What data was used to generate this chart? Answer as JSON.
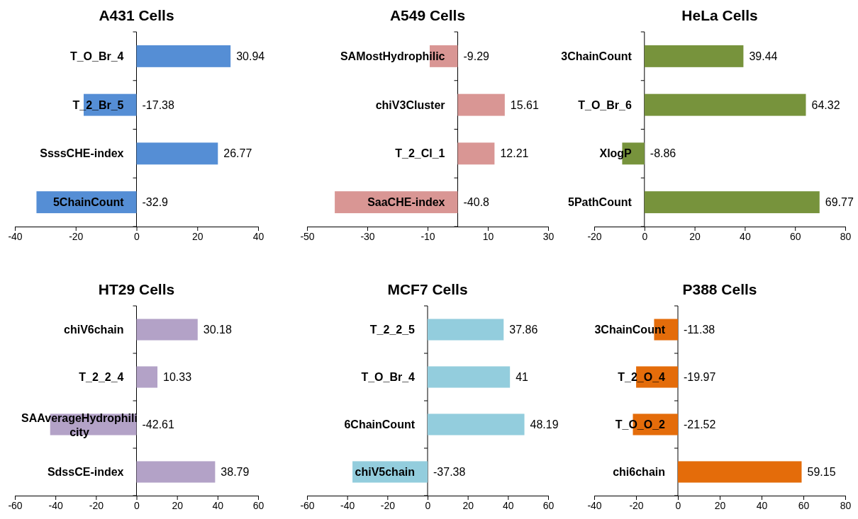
{
  "chart_data": [
    {
      "type": "bar",
      "orientation": "horizontal",
      "title": "A431 Cells",
      "categories": [
        "T_O_Br_4",
        "T_2_Br_5",
        "SsssCHE-index",
        "5ChainCount"
      ],
      "values": [
        30.94,
        -17.38,
        26.77,
        -32.9
      ],
      "color": "#558ed5",
      "xlim": [
        -40,
        40
      ],
      "xticks": [
        -40,
        -20,
        0,
        20,
        40
      ],
      "data_labels": true
    },
    {
      "type": "bar",
      "orientation": "horizontal",
      "title": "A549 Cells",
      "categories": [
        "SAMostHydrophilic",
        "chiV3Cluster",
        "T_2_Cl_1",
        "SaaCHE-index"
      ],
      "values": [
        -9.29,
        15.61,
        12.21,
        -40.8
      ],
      "color": "#d99694",
      "xlim": [
        -50,
        30
      ],
      "xticks": [
        -50,
        -30,
        -10,
        10,
        30
      ],
      "data_labels": true
    },
    {
      "type": "bar",
      "orientation": "horizontal",
      "title": "HeLa Cells",
      "categories": [
        "3ChainCount",
        "T_O_Br_6",
        "XlogP",
        "5PathCount"
      ],
      "values": [
        39.44,
        64.32,
        -8.86,
        69.77
      ],
      "color": "#77933c",
      "xlim": [
        -20,
        80
      ],
      "xticks": [
        -20,
        0,
        20,
        40,
        60,
        80
      ],
      "data_labels": true
    },
    {
      "type": "bar",
      "orientation": "horizontal",
      "title": "HT29 Cells",
      "categories": [
        "chiV6chain",
        "T_2_2_4",
        "SAAverageHydrophilicity",
        "SdssCE-index"
      ],
      "values": [
        30.18,
        10.33,
        -42.61,
        38.79
      ],
      "color": "#b3a2c7",
      "xlim": [
        -60,
        60
      ],
      "xticks": [
        -60,
        -40,
        -20,
        0,
        20,
        40,
        60
      ],
      "data_labels": true
    },
    {
      "type": "bar",
      "orientation": "horizontal",
      "title": "MCF7 Cells",
      "categories": [
        "T_2_2_5",
        "T_O_Br_4",
        "6ChainCount",
        "chiV5chain"
      ],
      "values": [
        37.86,
        41,
        48.19,
        -37.38
      ],
      "color": "#93cddd",
      "xlim": [
        -60,
        60
      ],
      "xticks": [
        -60,
        -40,
        -20,
        0,
        20,
        40,
        60
      ],
      "data_labels": true
    },
    {
      "type": "bar",
      "orientation": "horizontal",
      "title": "P388 Cells",
      "categories": [
        "3ChainCount",
        "T_2_O_4",
        "T_O_O_2",
        "chi6chain"
      ],
      "values": [
        -11.38,
        -19.97,
        -21.52,
        59.15
      ],
      "color": "#e46c0a",
      "xlim": [
        -40,
        80
      ],
      "xticks": [
        -40,
        -20,
        0,
        20,
        40,
        60,
        80
      ],
      "data_labels": true
    }
  ]
}
